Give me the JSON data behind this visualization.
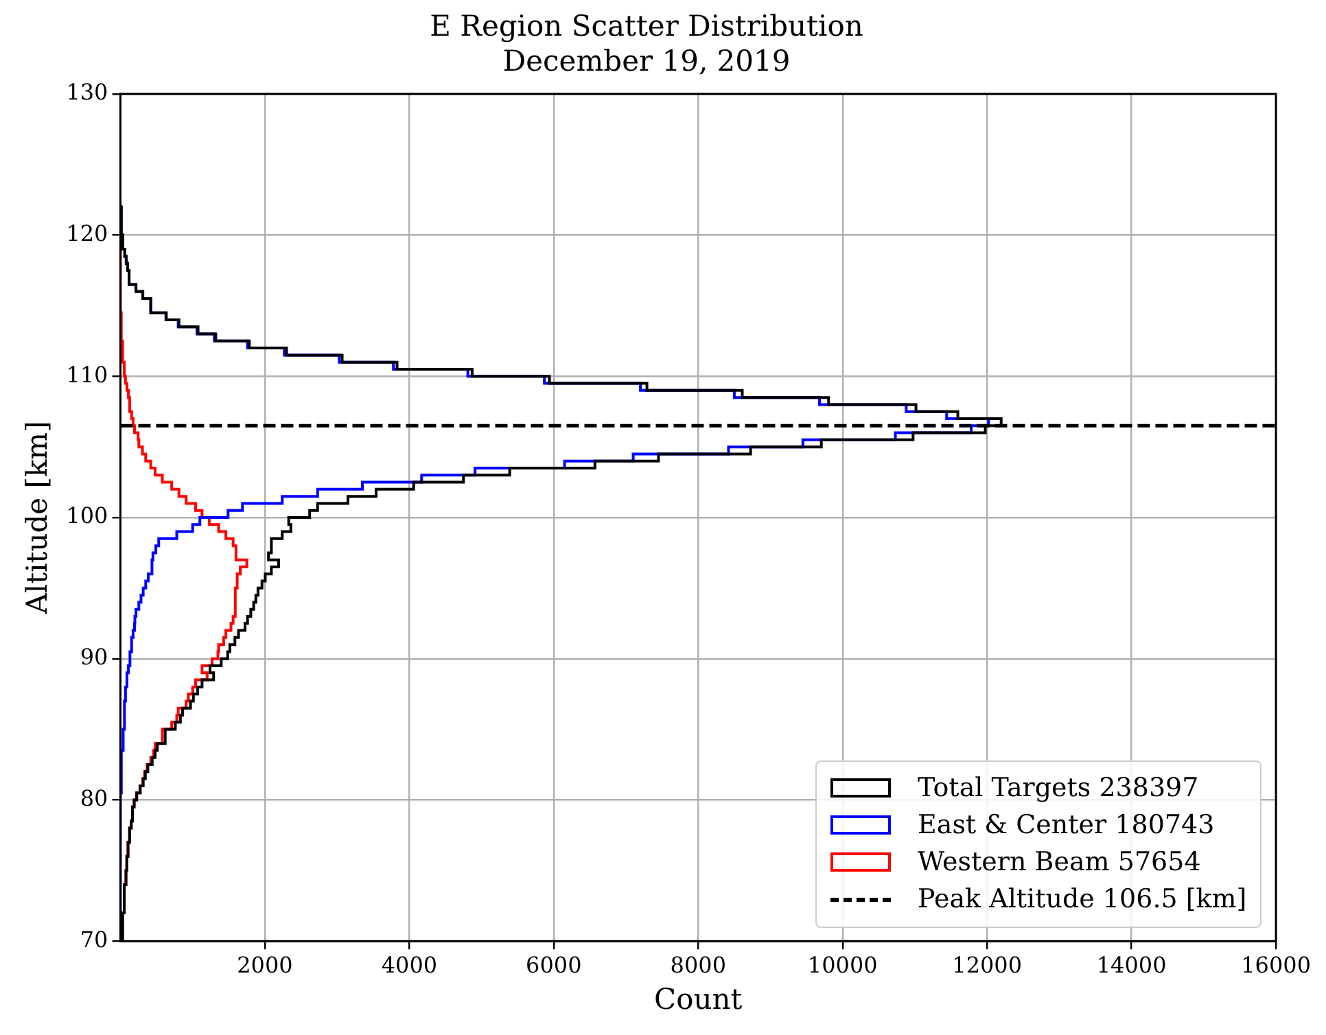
{
  "chart_data": {
    "type": "histogram",
    "title": "E Region Scatter Distribution",
    "subtitle": "December 19, 2019",
    "xlabel": "Count",
    "ylabel": "Altitude [km]",
    "orientation": "horizontal",
    "bins": [
      70,
      70.5,
      71,
      71.5,
      72,
      72.5,
      73,
      73.5,
      74,
      74.5,
      75,
      75.5,
      76,
      76.5,
      77,
      77.5,
      78,
      78.5,
      79,
      79.5,
      80,
      80.5,
      81,
      81.5,
      82,
      82.5,
      83,
      83.5,
      84,
      84.5,
      85,
      85.5,
      86,
      86.5,
      87,
      87.5,
      88,
      88.5,
      89,
      89.5,
      90,
      90.5,
      91,
      91.5,
      92,
      92.5,
      93,
      93.5,
      94,
      94.5,
      95,
      95.5,
      96,
      96.5,
      97,
      97.5,
      98,
      98.5,
      99,
      99.5,
      100,
      100.5,
      101,
      101.5,
      102,
      102.5,
      103,
      103.5,
      104,
      104.5,
      105,
      105.5,
      106,
      106.5,
      107,
      107.5,
      108,
      108.5,
      109,
      109.5,
      110,
      110.5,
      111,
      111.5,
      112,
      112.5,
      113,
      113.5,
      114,
      114.5,
      115,
      115.5,
      116,
      116.5,
      117,
      117.5,
      118,
      118.5,
      119,
      119.5,
      120,
      120.5,
      121,
      121.5,
      122
    ],
    "series": [
      {
        "name": "Total Targets 238397",
        "color": "#000000",
        "values": [
          25,
          25,
          35,
          35,
          50,
          50,
          50,
          60,
          70,
          80,
          85,
          90,
          105,
          105,
          120,
          130,
          150,
          160,
          170,
          190,
          225,
          275,
          315,
          345,
          380,
          440,
          480,
          510,
          620,
          620,
          760,
          830,
          860,
          970,
          1010,
          1070,
          1130,
          1290,
          1240,
          1395,
          1485,
          1515,
          1585,
          1635,
          1725,
          1760,
          1805,
          1845,
          1875,
          1905,
          1960,
          2005,
          2090,
          2190,
          2050,
          2090,
          2090,
          2240,
          2360,
          2330,
          2620,
          2730,
          3150,
          3540,
          4060,
          4750,
          5390,
          6570,
          7450,
          8725,
          9705,
          10975,
          11975,
          12195,
          11595,
          11015,
          9805,
          8610,
          7290,
          5940,
          4870,
          3830,
          3070,
          2300,
          1785,
          1320,
          1075,
          810,
          635,
          420,
          420,
          310,
          215,
          120,
          120,
          100,
          80,
          60,
          40,
          30,
          20,
          15,
          10,
          5
        ]
      },
      {
        "name": "East & Center 180743",
        "color": "#0000ff",
        "values": [
          0,
          0,
          0,
          0,
          0,
          0,
          0,
          0,
          0,
          0,
          0,
          0,
          0,
          0,
          0,
          0,
          0,
          0,
          0,
          0,
          0,
          5,
          5,
          10,
          10,
          20,
          20,
          30,
          40,
          40,
          50,
          50,
          60,
          60,
          70,
          70,
          90,
          90,
          110,
          125,
          135,
          155,
          155,
          175,
          195,
          200,
          215,
          255,
          285,
          315,
          350,
          385,
          430,
          440,
          450,
          490,
          530,
          780,
          1000,
          1100,
          1490,
          1690,
          2240,
          2730,
          3350,
          4170,
          4910,
          6150,
          7100,
          8420,
          9450,
          10730,
          11780,
          12020,
          11440,
          10880,
          9680,
          8500,
          7200,
          5870,
          4810,
          3780,
          3030,
          2270,
          1760,
          1300,
          1060,
          800,
          630,
          420,
          420,
          310,
          215,
          120,
          120,
          100,
          80,
          60,
          40,
          30,
          20,
          15,
          10,
          5
        ]
      },
      {
        "name": "Western Beam 57654",
        "color": "#ff0000",
        "values": [
          25,
          25,
          35,
          35,
          50,
          50,
          50,
          60,
          70,
          80,
          85,
          90,
          105,
          105,
          120,
          130,
          150,
          160,
          170,
          190,
          225,
          270,
          310,
          335,
          370,
          420,
          460,
          480,
          580,
          580,
          710,
          780,
          800,
          910,
          940,
          1000,
          1040,
          1200,
          1130,
          1270,
          1350,
          1360,
          1430,
          1460,
          1530,
          1560,
          1590,
          1590,
          1590,
          1590,
          1610,
          1620,
          1660,
          1750,
          1600,
          1600,
          1560,
          1460,
          1360,
          1230,
          1130,
          1040,
          910,
          810,
          710,
          580,
          480,
          420,
          350,
          305,
          255,
          245,
          195,
          175,
          155,
          135,
          125,
          110,
          90,
          70,
          60,
          50,
          40,
          30,
          25,
          20,
          15,
          10,
          5,
          0,
          0,
          0,
          0,
          0,
          0,
          0,
          0,
          0,
          0,
          0,
          0,
          0,
          0,
          0
        ]
      }
    ],
    "ref_lines": [
      {
        "axis": "y",
        "value": 106.5,
        "label": "Peak Altitude 106.5 [km]",
        "color": "#000000",
        "line_style": "dashed"
      }
    ],
    "xlim": [
      0,
      16000
    ],
    "xticks": [
      2000,
      4000,
      6000,
      8000,
      10000,
      12000,
      14000,
      16000
    ],
    "ylim": [
      70,
      130
    ],
    "yticks": [
      70,
      80,
      90,
      100,
      110,
      120,
      130
    ],
    "grid": true,
    "legend": "bottom right"
  }
}
